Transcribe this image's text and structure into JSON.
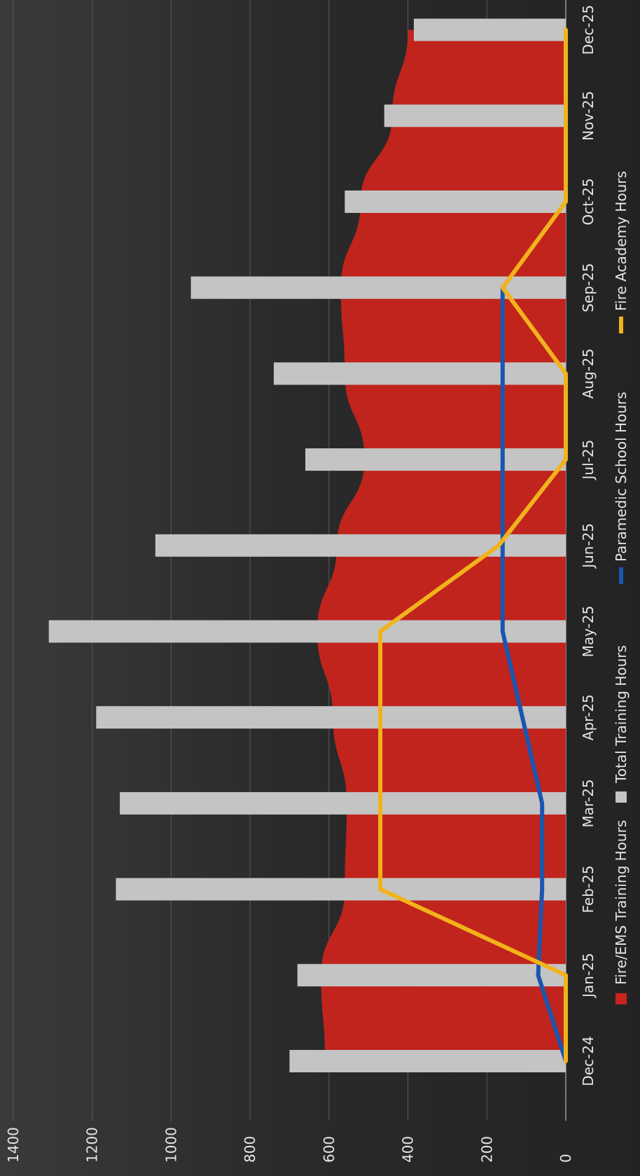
{
  "chart_data": {
    "type": "bar",
    "orientation": "rotated 90 degrees clockwise",
    "title": "",
    "xlabel": "",
    "ylabel": "",
    "categories": [
      "Dec-24",
      "Jan-25",
      "Feb-25",
      "Mar-25",
      "Apr-25",
      "May-25",
      "Jun-25",
      "Jul-25",
      "Aug-25",
      "Sep-25",
      "Oct-25",
      "Nov-25",
      "Dec-25"
    ],
    "ylim": [
      0,
      1400
    ],
    "yticks": [
      "0",
      "200",
      "400",
      "600",
      "800",
      "1000",
      "1200",
      "1400"
    ],
    "grid": true,
    "legend_placement": "bottom",
    "series": [
      {
        "name": "Fire/EMS Training Hours",
        "type": "area",
        "color": "#c8241c",
        "values": [
          610,
          620,
          560,
          555,
          590,
          630,
          580,
          510,
          560,
          570,
          520,
          440,
          400
        ]
      },
      {
        "name": "Total Training Hours",
        "type": "bar",
        "color": "#c4c4c4",
        "values": [
          700,
          680,
          1140,
          1130,
          1190,
          1310,
          1040,
          660,
          740,
          950,
          560,
          460,
          385
        ]
      },
      {
        "name": "Paramedic School Hours",
        "type": "line",
        "color": "#1a56b0",
        "values": [
          0,
          70,
          60,
          60,
          110,
          160,
          160,
          160,
          160,
          160,
          null,
          null,
          null
        ]
      },
      {
        "name": "Fire Academy Hours",
        "type": "line",
        "color": "#f2b21b",
        "values": [
          0,
          0,
          470,
          470,
          470,
          470,
          170,
          0,
          0,
          160,
          0,
          0,
          0
        ]
      }
    ]
  }
}
